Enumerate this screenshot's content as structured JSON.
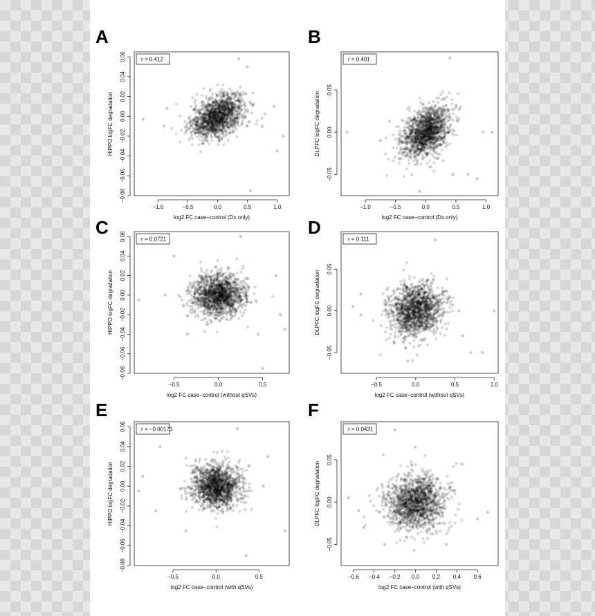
{
  "colors": {
    "background": "#ffffff",
    "point": "#000000",
    "axis": "#222222"
  },
  "chart_data": [
    {
      "panel": "A",
      "type": "scatter",
      "r_label": "r = 0.412",
      "xlabel": "log2 FC case−control (Dx only)",
      "ylabel": "HIPPO logFC degradation",
      "xlim": [
        -1.4,
        1.2
      ],
      "ylim": [
        -0.08,
        0.065
      ],
      "xticks": [
        -1.0,
        -0.5,
        0.0,
        0.5,
        1.0
      ],
      "xtick_labels": [
        "−1.0",
        "−0.5",
        "0.0",
        "0.5",
        "1.0"
      ],
      "yticks": [
        -0.08,
        -0.06,
        -0.04,
        -0.02,
        0.0,
        0.02,
        0.04,
        0.06
      ],
      "ytick_labels": [
        "−0.08",
        "−0.06",
        "−0.04",
        "−0.02",
        "0.00",
        "0.02",
        "0.04",
        "0.06"
      ],
      "cloud": {
        "center": [
          0.0,
          0.0
        ],
        "sd": [
          0.22,
          0.011
        ],
        "correlation": 0.412,
        "n_points": 1400
      },
      "outliers": [
        [
          -1.25,
          -0.003
        ],
        [
          -0.85,
          0.008
        ],
        [
          1.1,
          -0.02
        ],
        [
          0.55,
          -0.075
        ],
        [
          0.35,
          0.058
        ],
        [
          0.95,
          0.01
        ],
        [
          1.0,
          -0.035
        ],
        [
          -0.9,
          -0.01
        ],
        [
          0.75,
          -0.01
        ],
        [
          0.5,
          0.05
        ]
      ]
    },
    {
      "panel": "B",
      "type": "scatter",
      "r_label": "r = 0.401",
      "xlabel": "log2 FC case−control (Dx only)",
      "ylabel": "DLPFC logFC degradation",
      "xlim": [
        -1.4,
        1.2
      ],
      "ylim": [
        -0.075,
        0.095
      ],
      "xticks": [
        -1.0,
        -0.5,
        0.0,
        0.5,
        1.0
      ],
      "xtick_labels": [
        "−1.0",
        "−0.5",
        "0.0",
        "0.5",
        "1.0"
      ],
      "yticks": [
        -0.05,
        0.0,
        0.05
      ],
      "ytick_labels": [
        "−0.05",
        "0.00",
        "0.05"
      ],
      "cloud": {
        "center": [
          0.0,
          0.0
        ],
        "sd": [
          0.2,
          0.015
        ],
        "correlation": 0.401,
        "n_points": 1400
      },
      "outliers": [
        [
          -1.3,
          0.0
        ],
        [
          -0.6,
          0.013
        ],
        [
          0.95,
          0.0
        ],
        [
          1.1,
          0.0
        ],
        [
          0.4,
          0.088
        ],
        [
          0.45,
          -0.05
        ],
        [
          0.7,
          -0.05
        ],
        [
          0.85,
          -0.055
        ],
        [
          -0.1,
          -0.07
        ],
        [
          -0.75,
          -0.01
        ]
      ]
    },
    {
      "panel": "C",
      "type": "scatter",
      "r_label": "r = 0.0721",
      "xlabel": "log2 FC case−control (without qSVs)",
      "ylabel": "HIPPO logFC degradation",
      "xlim": [
        -0.95,
        0.8
      ],
      "ylim": [
        -0.08,
        0.065
      ],
      "xticks": [
        -0.5,
        0.0,
        0.5
      ],
      "xtick_labels": [
        "−0.5",
        "0.0",
        "0.5"
      ],
      "yticks": [
        -0.08,
        -0.06,
        -0.04,
        -0.02,
        0.0,
        0.02,
        0.04,
        0.06
      ],
      "ytick_labels": [
        "−0.08",
        "−0.06",
        "−0.04",
        "−0.02",
        "0.00",
        "0.02",
        "0.04",
        "0.06"
      ],
      "cloud": {
        "center": [
          0.0,
          0.0
        ],
        "sd": [
          0.15,
          0.011
        ],
        "correlation": 0.0721,
        "n_points": 1400
      },
      "outliers": [
        [
          -0.9,
          -0.005
        ],
        [
          -0.6,
          0.0
        ],
        [
          0.45,
          -0.04
        ],
        [
          0.7,
          -0.02
        ],
        [
          0.5,
          -0.075
        ],
        [
          0.25,
          0.06
        ],
        [
          -0.5,
          0.04
        ],
        [
          0.65,
          0.02
        ],
        [
          -0.35,
          -0.04
        ],
        [
          0.75,
          -0.035
        ]
      ]
    },
    {
      "panel": "D",
      "type": "scatter",
      "r_label": "r = 0.111",
      "xlabel": "log2 FC case−control (without qSVs)",
      "ylabel": "DLPFC logFC degradation",
      "xlim": [
        -0.95,
        1.05
      ],
      "ylim": [
        -0.075,
        0.095
      ],
      "xticks": [
        -0.5,
        0.0,
        0.5,
        1.0
      ],
      "xtick_labels": [
        "−0.5",
        "0.0",
        "0.5",
        "1.0"
      ],
      "yticks": [
        -0.05,
        0.0,
        0.05
      ],
      "ytick_labels": [
        "−0.05",
        "0.00",
        "0.05"
      ],
      "cloud": {
        "center": [
          0.0,
          0.0
        ],
        "sd": [
          0.17,
          0.016
        ],
        "correlation": 0.111,
        "n_points": 1400
      },
      "outliers": [
        [
          -0.8,
          0.005
        ],
        [
          -0.7,
          -0.005
        ],
        [
          1.0,
          0.0
        ],
        [
          0.85,
          -0.05
        ],
        [
          0.7,
          -0.05
        ],
        [
          0.25,
          0.085
        ],
        [
          -0.1,
          -0.06
        ],
        [
          0.55,
          0.0
        ],
        [
          -0.7,
          0.02
        ],
        [
          0.6,
          -0.03
        ]
      ]
    },
    {
      "panel": "E",
      "type": "scatter",
      "r_label": "r = −0.00173",
      "xlabel": "log2 FC case−control (with qSVs)",
      "ylabel": "HIPPO logFC degradation",
      "xlim": [
        -0.95,
        0.85
      ],
      "ylim": [
        -0.08,
        0.065
      ],
      "xticks": [
        -0.5,
        0.0,
        0.5
      ],
      "xtick_labels": [
        "−0.5",
        "0.0",
        "0.5"
      ],
      "yticks": [
        -0.08,
        -0.06,
        -0.04,
        -0.02,
        0.0,
        0.02,
        0.04,
        0.06
      ],
      "ytick_labels": [
        "−0.08",
        "−0.06",
        "−0.04",
        "−0.02",
        "0.00",
        "0.02",
        "0.04",
        "0.06"
      ],
      "cloud": {
        "center": [
          0.0,
          0.0
        ],
        "sd": [
          0.14,
          0.011
        ],
        "correlation": -0.00173,
        "n_points": 1400
      },
      "outliers": [
        [
          -0.9,
          -0.005
        ],
        [
          -0.85,
          0.01
        ],
        [
          0.8,
          -0.045
        ],
        [
          0.35,
          -0.07
        ],
        [
          0.25,
          0.058
        ],
        [
          -0.65,
          0.04
        ],
        [
          -0.35,
          -0.045
        ],
        [
          0.55,
          0.0
        ],
        [
          -0.7,
          -0.025
        ],
        [
          0.6,
          0.03
        ]
      ]
    },
    {
      "panel": "F",
      "type": "scatter",
      "r_label": "r = 0.0431",
      "xlabel": "log2 FC case−control (with qSVs)",
      "ylabel": "DLPFC logFC degradation",
      "xlim": [
        -0.72,
        0.8
      ],
      "ylim": [
        -0.075,
        0.095
      ],
      "xticks": [
        -0.6,
        -0.4,
        -0.2,
        0.0,
        0.2,
        0.4,
        0.6
      ],
      "xtick_labels": [
        "−0.6",
        "−0.4",
        "−0.2",
        "0.0",
        "0.2",
        "0.4",
        "0.6"
      ],
      "yticks": [
        -0.05,
        0.0,
        0.05
      ],
      "ytick_labels": [
        "−0.05",
        "0.00",
        "0.05"
      ],
      "cloud": {
        "center": [
          0.0,
          0.0
        ],
        "sd": [
          0.14,
          0.016
        ],
        "correlation": 0.0431,
        "n_points": 1400
      },
      "outliers": [
        [
          -0.65,
          0.005
        ],
        [
          -0.55,
          -0.01
        ],
        [
          0.7,
          -0.012
        ],
        [
          0.6,
          -0.02
        ],
        [
          -0.2,
          0.085
        ],
        [
          0.0,
          0.065
        ],
        [
          -0.3,
          -0.05
        ],
        [
          0.3,
          -0.05
        ],
        [
          0.45,
          0.045
        ],
        [
          -0.5,
          -0.03
        ]
      ]
    }
  ]
}
